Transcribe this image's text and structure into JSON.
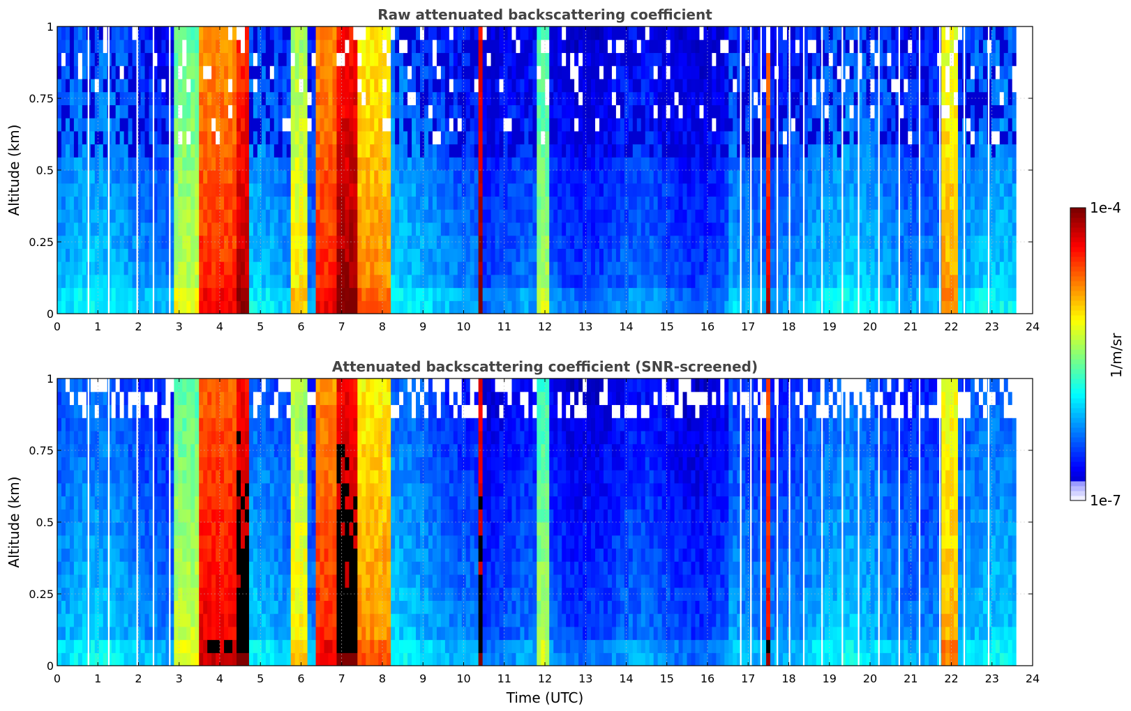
{
  "chart_data": [
    {
      "type": "heatmap",
      "title": "Raw attenuated backscattering coefficient",
      "xlabel": "",
      "ylabel": "Altitude (km)",
      "xlim": [
        0,
        24
      ],
      "ylim": [
        0,
        1
      ],
      "x_ticks": [
        "0",
        "1",
        "2",
        "3",
        "4",
        "5",
        "6",
        "7",
        "8",
        "9",
        "10",
        "11",
        "12",
        "13",
        "14",
        "15",
        "16",
        "17",
        "18",
        "19",
        "20",
        "21",
        "22",
        "23",
        "24"
      ],
      "y_ticks": [
        "0",
        "0.25",
        "0.5",
        "0.75",
        "1"
      ],
      "grid": true,
      "data_end_hour": 23.6,
      "color_scale": "jet (log)",
      "screened": false,
      "missing_profile_hours": [
        0.75,
        1.25,
        1.95,
        2.35,
        2.75,
        16.8,
        17.05,
        17.3,
        17.7,
        18.0,
        18.35,
        18.8,
        19.3,
        19.7,
        20.2,
        20.7,
        21.2,
        21.7,
        22.3,
        22.9
      ],
      "dominant_features": [
        {
          "start_hour": 2.9,
          "end_hour": 3.5,
          "level": 0.58
        },
        {
          "start_hour": 3.5,
          "end_hour": 4.4,
          "level": 0.85
        },
        {
          "start_hour": 4.4,
          "end_hour": 4.75,
          "level": 0.95
        },
        {
          "start_hour": 5.7,
          "end_hour": 6.2,
          "level": 0.65
        },
        {
          "start_hour": 6.4,
          "end_hour": 6.9,
          "level": 0.85
        },
        {
          "start_hour": 6.9,
          "end_hour": 7.4,
          "level": 0.98
        },
        {
          "start_hour": 7.4,
          "end_hour": 8.2,
          "level": 0.75
        },
        {
          "start_hour": 10.35,
          "end_hour": 10.45,
          "level": 1.0
        },
        {
          "start_hour": 11.8,
          "end_hour": 12.1,
          "level": 0.55
        },
        {
          "start_hour": 17.4,
          "end_hour": 17.5,
          "level": 0.9
        },
        {
          "start_hour": 21.8,
          "end_hour": 22.2,
          "level": 0.72
        }
      ]
    },
    {
      "type": "heatmap",
      "title": "Attenuated backscattering coefficient (SNR-screened)",
      "xlabel": "Time (UTC)",
      "ylabel": "Altitude (km)",
      "xlim": [
        0,
        24
      ],
      "ylim": [
        0,
        1
      ],
      "x_ticks": [
        "0",
        "1",
        "2",
        "3",
        "4",
        "5",
        "6",
        "7",
        "8",
        "9",
        "10",
        "11",
        "12",
        "13",
        "14",
        "15",
        "16",
        "17",
        "18",
        "19",
        "20",
        "21",
        "22",
        "23",
        "24"
      ],
      "y_ticks": [
        "0",
        "0.25",
        "0.5",
        "0.75",
        "1"
      ],
      "grid": true,
      "data_end_hour": 23.6,
      "color_scale": "jet (log)",
      "screened": true,
      "missing_profile_hours": [
        0.75,
        1.25,
        1.95,
        2.35,
        2.75,
        16.8,
        17.05,
        17.3,
        17.7,
        18.0,
        18.35,
        18.8,
        19.3,
        19.7,
        20.2,
        20.7,
        21.2,
        21.7,
        22.3,
        22.9
      ],
      "dominant_features": [
        {
          "start_hour": 2.9,
          "end_hour": 3.5,
          "level": 0.58
        },
        {
          "start_hour": 3.5,
          "end_hour": 4.4,
          "level": 0.9
        },
        {
          "start_hour": 4.4,
          "end_hour": 4.75,
          "level": 1.0
        },
        {
          "start_hour": 5.7,
          "end_hour": 6.2,
          "level": 0.65
        },
        {
          "start_hour": 6.4,
          "end_hour": 6.9,
          "level": 0.85
        },
        {
          "start_hour": 6.9,
          "end_hour": 7.4,
          "level": 1.0
        },
        {
          "start_hour": 7.4,
          "end_hour": 8.2,
          "level": 0.75
        },
        {
          "start_hour": 10.35,
          "end_hour": 10.45,
          "level": 1.0
        },
        {
          "start_hour": 11.8,
          "end_hour": 12.1,
          "level": 0.55
        },
        {
          "start_hour": 17.4,
          "end_hour": 17.5,
          "level": 0.9
        },
        {
          "start_hour": 21.8,
          "end_hour": 22.2,
          "level": 0.72
        }
      ]
    }
  ],
  "colorbar": {
    "label": "1/m/sr",
    "max_label": "1e-4",
    "min_label": "1e-7",
    "range": [
      1e-07,
      0.0001
    ],
    "colors": [
      "#f0f0ff",
      "#c8c8ff",
      "#9090ff",
      "#0000ff",
      "#0050ff",
      "#00a0ff",
      "#00e0e0",
      "#40ffa0",
      "#b0ff40",
      "#ffff00",
      "#ffc000",
      "#ff7000",
      "#ff2000",
      "#c00000",
      "#800000"
    ]
  }
}
